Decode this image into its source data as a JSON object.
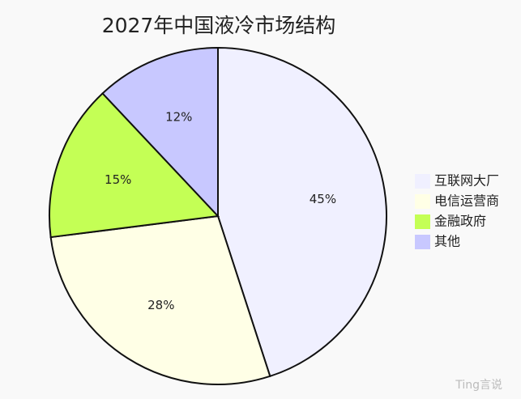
{
  "chart_data": {
    "type": "pie",
    "title": "2027年中国液冷市场结构",
    "categories": [
      "互联网大厂",
      "电信运营商",
      "金融政府",
      "其他"
    ],
    "values": [
      45,
      28,
      15,
      12
    ],
    "value_labels": [
      "45%",
      "28%",
      "15%",
      "12%"
    ],
    "colors": [
      "#f0f0ff",
      "#ffffe6",
      "#c4ff55",
      "#c8c8ff"
    ],
    "legend": "right"
  },
  "watermark": "Ting言说"
}
